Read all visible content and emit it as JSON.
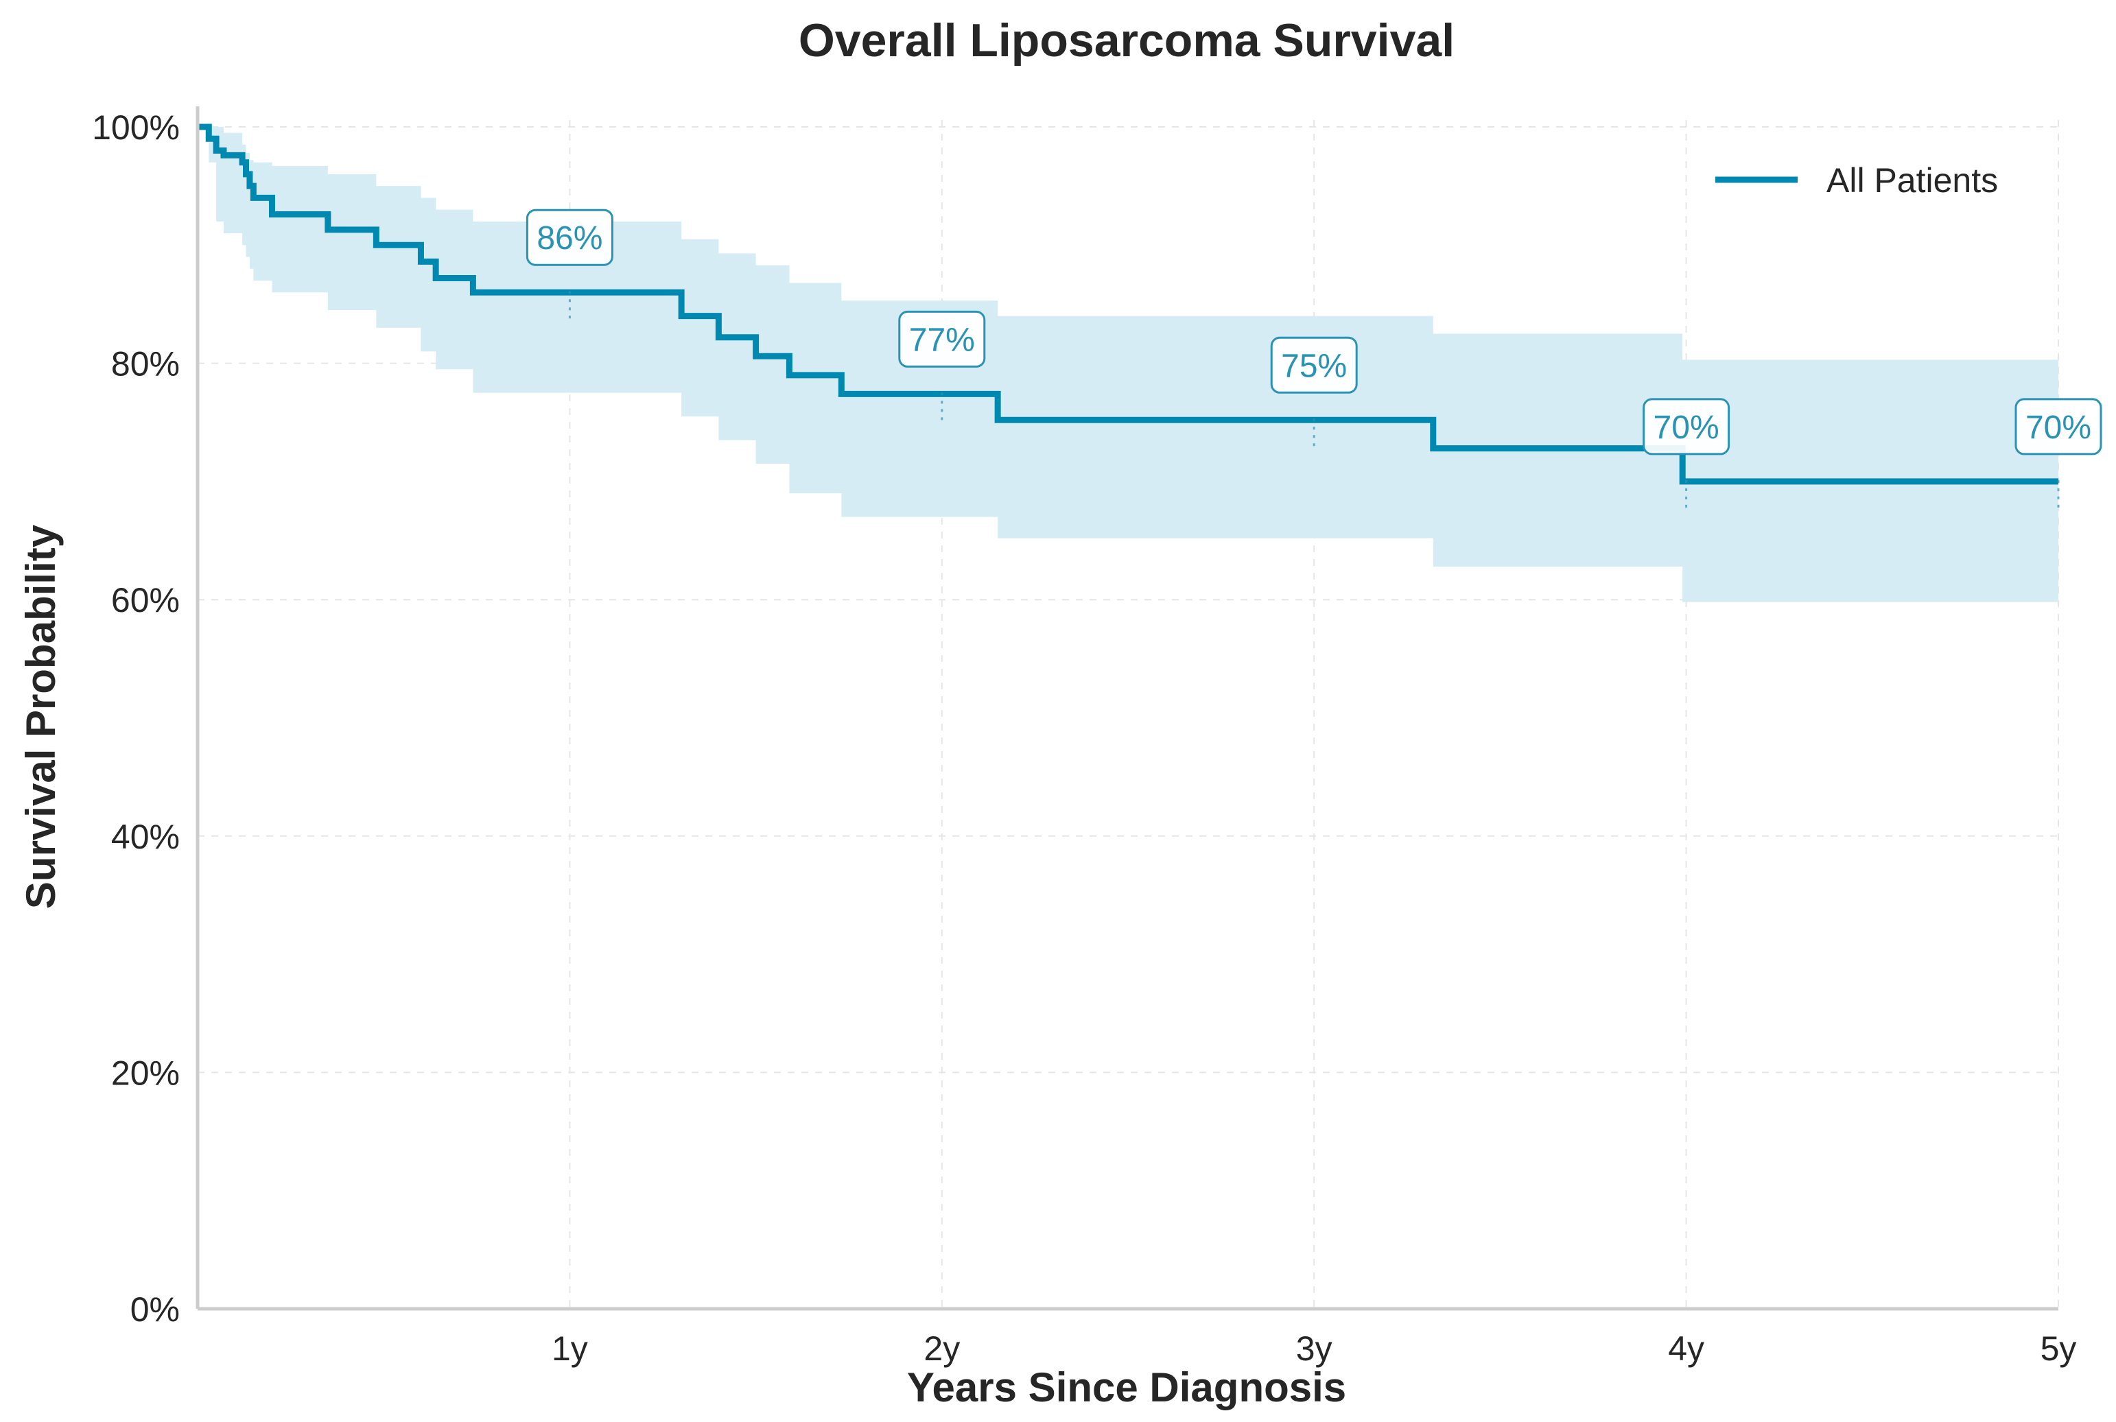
{
  "chart_data": {
    "type": "line",
    "title": "Overall Liposarcoma Survival",
    "xlabel": "Years Since Diagnosis",
    "ylabel": "Survival Probability",
    "xlim": [
      0,
      5
    ],
    "ylim": [
      0,
      1
    ],
    "x_ticks": [
      1,
      2,
      3,
      4,
      5
    ],
    "x_tick_labels": [
      "1y",
      "2y",
      "3y",
      "4y",
      "5y"
    ],
    "y_ticks": [
      0,
      0.2,
      0.4,
      0.6,
      0.8,
      1.0
    ],
    "y_tick_labels": [
      "0%",
      "20%",
      "40%",
      "60%",
      "80%",
      "100%"
    ],
    "grid": true,
    "legend": {
      "position": "top-right",
      "entries": [
        "All Patients"
      ]
    },
    "colors": {
      "line": "#0089b0",
      "band": "#d6ecf4",
      "annotation": "#2a93b4"
    },
    "series": [
      {
        "name": "All Patients",
        "x": [
          0,
          0.03,
          0.05,
          0.07,
          0.12,
          0.13,
          0.14,
          0.15,
          0.2,
          0.35,
          0.48,
          0.6,
          0.64,
          0.74,
          1.3,
          1.4,
          1.5,
          1.59,
          1.73,
          2.15,
          3.32,
          3.99,
          5.0
        ],
        "y": [
          1.0,
          0.99,
          0.98,
          0.976,
          0.97,
          0.96,
          0.95,
          0.94,
          0.926,
          0.913,
          0.9,
          0.886,
          0.872,
          0.86,
          0.84,
          0.822,
          0.806,
          0.79,
          0.774,
          0.752,
          0.728,
          0.7,
          0.7
        ],
        "ci_lower": [
          1.0,
          0.97,
          0.92,
          0.91,
          0.9,
          0.89,
          0.88,
          0.87,
          0.86,
          0.845,
          0.83,
          0.81,
          0.795,
          0.775,
          0.755,
          0.735,
          0.715,
          0.69,
          0.67,
          0.652,
          0.628,
          0.598,
          0.56
        ],
        "ci_upper": [
          1.0,
          1.0,
          1.0,
          0.995,
          0.985,
          0.978,
          0.972,
          0.97,
          0.967,
          0.96,
          0.95,
          0.94,
          0.93,
          0.92,
          0.905,
          0.893,
          0.883,
          0.868,
          0.853,
          0.84,
          0.825,
          0.803,
          0.803
        ]
      }
    ],
    "annotations": [
      {
        "x": 1,
        "y": 0.86,
        "label": "86%"
      },
      {
        "x": 2,
        "y": 0.774,
        "label": "77%"
      },
      {
        "x": 3,
        "y": 0.752,
        "label": "75%"
      },
      {
        "x": 4,
        "y": 0.7,
        "label": "70%"
      },
      {
        "x": 5,
        "y": 0.7,
        "label": "70%"
      }
    ]
  }
}
